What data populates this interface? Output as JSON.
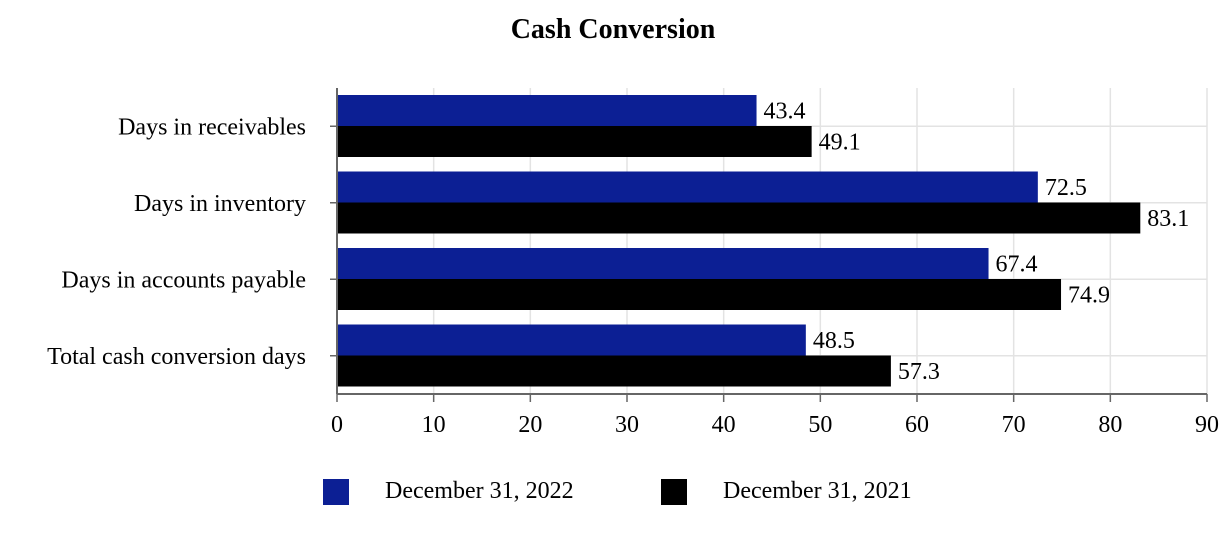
{
  "chart_data": {
    "type": "bar",
    "orientation": "horizontal",
    "title": "Cash Conversion",
    "xlabel": "",
    "ylabel": "",
    "categories": [
      "Days in receivables",
      "Days in inventory",
      "Days in accounts payable",
      "Total cash conversion days"
    ],
    "series": [
      {
        "name": "December 31, 2022",
        "color": "#0c1f94",
        "values": [
          43.4,
          72.5,
          67.4,
          48.5
        ]
      },
      {
        "name": "December 31, 2021",
        "color": "#000000",
        "values": [
          49.1,
          83.1,
          74.9,
          57.3
        ]
      }
    ],
    "xlim": [
      0,
      90
    ],
    "xticks": [
      "0",
      "10",
      "20",
      "30",
      "40",
      "50",
      "60",
      "70",
      "80",
      "90"
    ],
    "grid": true,
    "legend_position": "bottom"
  }
}
